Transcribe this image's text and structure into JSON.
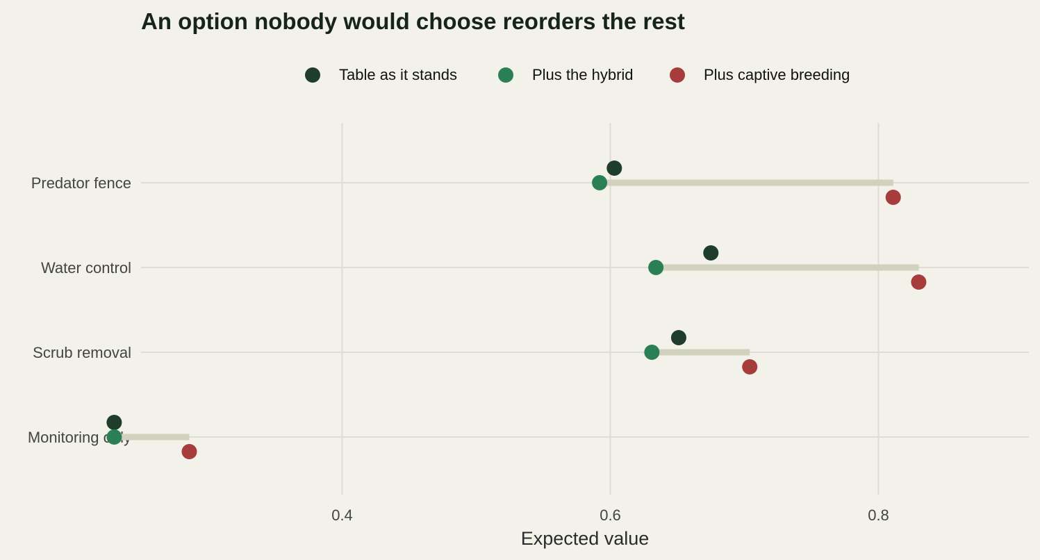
{
  "chart_data": {
    "type": "dumbbell",
    "title": "An option nobody would choose reorders the rest",
    "xlabel": "Expected value",
    "ylabel": "",
    "xlim": [
      0.2,
      0.86
    ],
    "x_ticks": [
      "0.4",
      "0.6",
      "0.8"
    ],
    "grid": true,
    "legend_position": "top",
    "categories": [
      "Predator fence",
      "Water control",
      "Scrub removal",
      "Monitoring only"
    ],
    "series": [
      {
        "name": "Table as it stands",
        "color": "#1f3d2b",
        "values": [
          0.603,
          0.675,
          0.651,
          0.23
        ]
      },
      {
        "name": "Plus the hybrid",
        "color": "#2a7f55",
        "values": [
          0.592,
          0.634,
          0.631,
          0.23
        ]
      },
      {
        "name": "Plus captive breeding",
        "color": "#a63c3c",
        "values": [
          0.811,
          0.83,
          0.704,
          0.286
        ]
      }
    ],
    "connector_color": "#d1d2bd",
    "grid_color": "#dedcd4"
  }
}
